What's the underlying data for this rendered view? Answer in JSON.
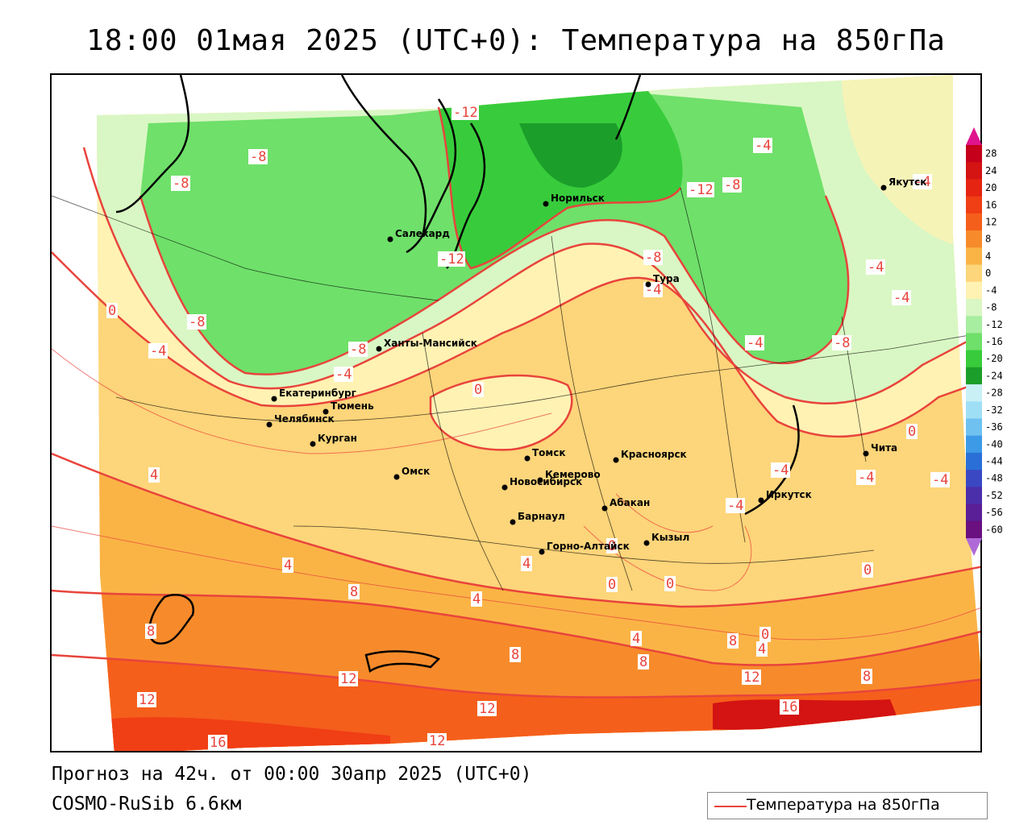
{
  "title": "18:00 01мая 2025 (UTC+0): Температура на 850гПа",
  "footer": {
    "forecast": "Прогноз на 42ч. от 00:00 30апр 2025 (UTC+0)",
    "model": "COSMO-RuSib 6.6км"
  },
  "legend": {
    "label": "Температура на 850гПа",
    "color": "#e8443c"
  },
  "colorbar": {
    "labels": [
      "28",
      "24",
      "20",
      "16",
      "12",
      "8",
      "4",
      "0",
      "-4",
      "-8",
      "-12",
      "-16",
      "-20",
      "-24",
      "-28",
      "-32",
      "-36",
      "-40",
      "-44",
      "-48",
      "-52",
      "-56",
      "-60"
    ],
    "colors": [
      "#c4001a",
      "#d41313",
      "#e52412",
      "#f03e15",
      "#f55f1c",
      "#f78b2b",
      "#fab446",
      "#fdd57a",
      "#fff2b3",
      "#d9f7c4",
      "#a8eea0",
      "#6fe06a",
      "#38cc3c",
      "#1c9e2a",
      "#c8f0f5",
      "#9fdff5",
      "#6fc2f0",
      "#3d9ae6",
      "#2a6fd8",
      "#3a48c4",
      "#4b2eaa",
      "#5a1e96",
      "#6a1080"
    ]
  },
  "isolabels": [
    {
      "text": "-12"
    },
    {
      "text": "-8"
    },
    {
      "text": "-8"
    },
    {
      "text": "-12"
    },
    {
      "text": "-8"
    },
    {
      "text": "-12"
    },
    {
      "text": "-8"
    },
    {
      "text": "-4"
    },
    {
      "text": "-4"
    },
    {
      "text": "-4"
    },
    {
      "text": "-4"
    },
    {
      "text": "-4"
    },
    {
      "text": "0"
    },
    {
      "text": "-8"
    },
    {
      "text": "-4"
    },
    {
      "text": "-8"
    },
    {
      "text": "-4"
    },
    {
      "text": "0"
    },
    {
      "text": "-8"
    },
    {
      "text": "0"
    },
    {
      "text": "4"
    },
    {
      "text": "-4"
    },
    {
      "text": "-4"
    },
    {
      "text": "-4"
    },
    {
      "text": "0"
    },
    {
      "text": "4"
    },
    {
      "text": "0"
    },
    {
      "text": "0"
    },
    {
      "text": "4"
    },
    {
      "text": "8"
    },
    {
      "text": "4"
    },
    {
      "text": "0"
    },
    {
      "text": "8"
    },
    {
      "text": "4"
    },
    {
      "text": "8"
    },
    {
      "text": "8"
    },
    {
      "text": "0"
    },
    {
      "text": "4"
    },
    {
      "text": "12"
    },
    {
      "text": "8"
    },
    {
      "text": "12"
    },
    {
      "text": "12"
    },
    {
      "text": "12"
    },
    {
      "text": "16"
    },
    {
      "text": "16"
    },
    {
      "text": "12"
    },
    {
      "text": "8"
    },
    {
      "text": "-4"
    },
    {
      "text": "-4"
    }
  ],
  "cities": [
    {
      "name": "Якутск"
    },
    {
      "name": "Норильск"
    },
    {
      "name": "Салехард"
    },
    {
      "name": "Тура"
    },
    {
      "name": "Ханты-Мансийск"
    },
    {
      "name": "Екатеринбург"
    },
    {
      "name": "Тюмень"
    },
    {
      "name": "Челябинск"
    },
    {
      "name": "Курган"
    },
    {
      "name": "Омск"
    },
    {
      "name": "Новосибирск"
    },
    {
      "name": "Томск"
    },
    {
      "name": "Кемерово"
    },
    {
      "name": "Красноярск"
    },
    {
      "name": "Барнаул"
    },
    {
      "name": "Абакан"
    },
    {
      "name": "Горно-Алтайск"
    },
    {
      "name": "Кызыл"
    },
    {
      "name": "Иркутск"
    },
    {
      "name": "Чита"
    }
  ]
}
